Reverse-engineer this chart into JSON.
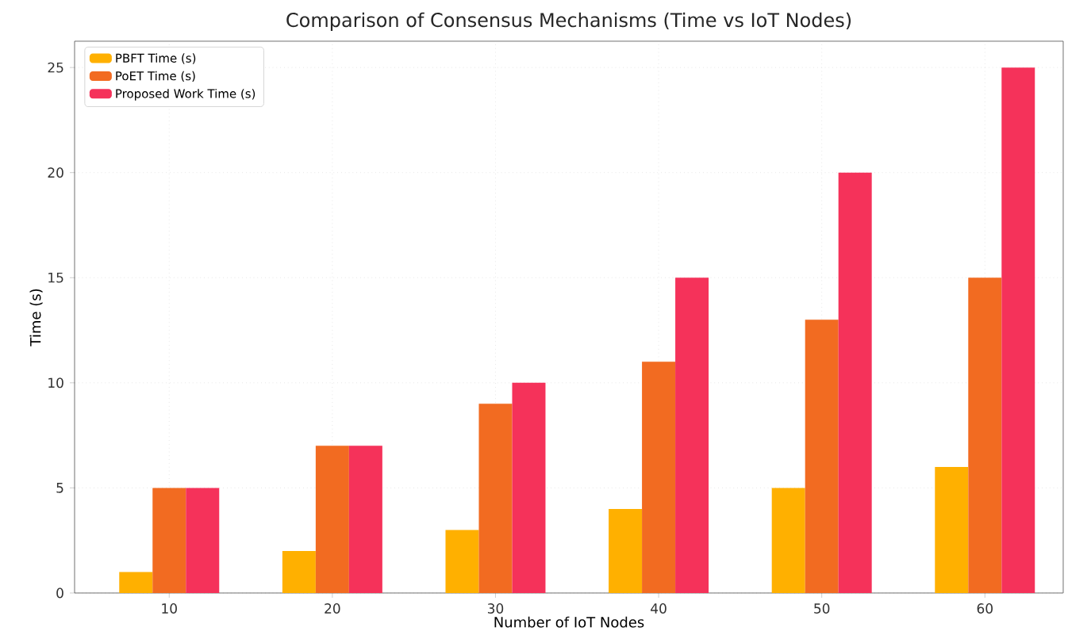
{
  "chart_data": {
    "type": "bar",
    "title": "Comparison of Consensus Mechanisms (Time vs IoT Nodes)",
    "xlabel": "Number of IoT Nodes",
    "ylabel": "Time (s)",
    "categories": [
      "10",
      "20",
      "30",
      "40",
      "50",
      "60"
    ],
    "series": [
      {
        "name": "PBFT Time (s)",
        "color": "#ffb000",
        "values": [
          1,
          2,
          3,
          4,
          5,
          6
        ]
      },
      {
        "name": "PoET Time (s)",
        "color": "#f26b21",
        "values": [
          5,
          7,
          9,
          11,
          13,
          15
        ]
      },
      {
        "name": "Proposed Work Time (s)",
        "color": "#f5325a",
        "values": [
          5,
          7,
          10,
          15,
          20,
          25
        ]
      }
    ],
    "ylim": [
      0,
      26.25
    ],
    "yticks": [
      0,
      5,
      10,
      15,
      20,
      25
    ],
    "grid": true,
    "legend": "top left"
  }
}
